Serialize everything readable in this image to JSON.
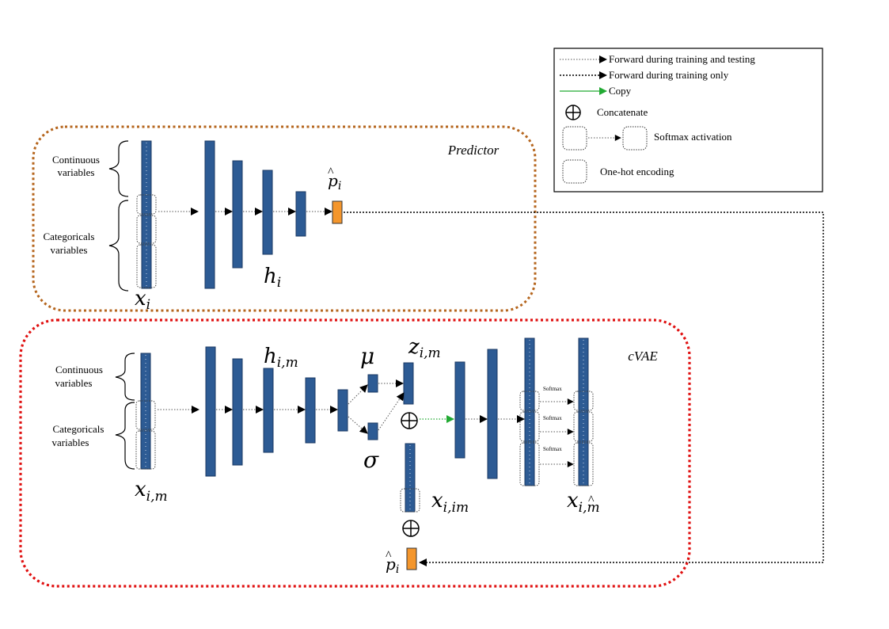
{
  "legend": {
    "forward_train_test": "Forward during training and testing",
    "forward_train_only": "Forward during training only",
    "copy": "Copy",
    "concatenate": "Concatenate",
    "softmax": "Softmax activation",
    "onehot": "One-hot encoding"
  },
  "predictor": {
    "title": "Predictor",
    "continuous_line1": "Continuous",
    "continuous_line2": "variables",
    "categorical_line1": "Categoricals",
    "categorical_line2": "variables",
    "input_label": "x",
    "input_sub": "i",
    "hidden_label": "h",
    "hidden_sub": "i",
    "output_label": "p",
    "output_sub": "i"
  },
  "cvae": {
    "title": "cVAE",
    "continuous_line1": "Continuous",
    "continuous_line2": "variables",
    "categorical_line1": "Categoricals",
    "categorical_line2": "variables",
    "input_label": "x",
    "input_sub": "i,m",
    "hidden_label": "h",
    "hidden_sub": "i,m",
    "mu": "μ",
    "sigma": "σ",
    "latent_label": "z",
    "latent_sub": "i,m",
    "cond_label": "x",
    "cond_sub": "i,im",
    "recon_label": "x",
    "recon_sub": "i,m",
    "recon_hat": "^",
    "pred_label": "p",
    "pred_sub": "i",
    "softmax_1": "Softmax",
    "softmax_2": "Softmax",
    "softmax_3": "Softmax"
  },
  "colors": {
    "layer_fill": "#2d5b94",
    "layer_stroke": "#1b3a63",
    "output_fill": "#f4962c",
    "predictor_border": "#b5651d",
    "cvae_border": "#e01010",
    "copy_arrow": "#22aa33"
  }
}
